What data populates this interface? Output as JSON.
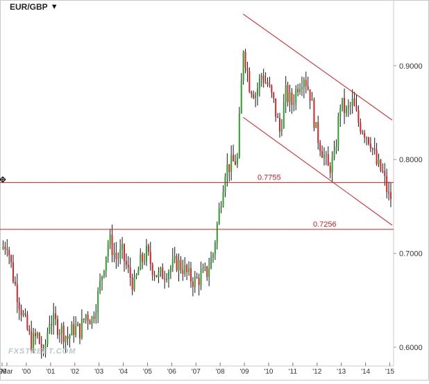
{
  "symbol": {
    "label": "EUR/GBP",
    "dropdown_icon": "triangle-down-icon",
    "dropdown_glyph": "▼"
  },
  "watermark": "FXSTREET.COM",
  "crosshair_icon": "move-crosshair-icon",
  "colors": {
    "up_candle": "#2ca02c",
    "down_candle": "#d62728",
    "wick": "#111111",
    "line": "#cc1f1f",
    "axis_text": "#333333",
    "border": "#c8c8c8"
  },
  "chart_data": {
    "type": "candlestick",
    "title": "EUR/GBP",
    "interval": "monthly",
    "y_range": [
      0.58,
      0.97
    ],
    "y_ticks": [
      "0.9000",
      "0.8000",
      "0.7000",
      "0.6000"
    ],
    "y_tick_values": [
      0.9,
      0.8,
      0.7,
      0.6
    ],
    "x_range_years": [
      1999.0,
      2015.1
    ],
    "x_tick_labels": [
      "'99",
      "Mar",
      "'00",
      "'01",
      "'02",
      "'03",
      "'04",
      "'05",
      "'06",
      "'07",
      "'08",
      "'09",
      "'10",
      "'11",
      "'12",
      "'13",
      "'14",
      "'15"
    ],
    "x_tick_values": [
      1999.0,
      1999.2,
      2000.0,
      2001.0,
      2002.0,
      2003.0,
      2004.0,
      2005.0,
      2006.0,
      2007.0,
      2008.0,
      2009.0,
      2010.0,
      2011.0,
      2012.0,
      2013.0,
      2014.0,
      2015.0
    ],
    "anchor_closes": [
      [
        1999.0,
        0.705
      ],
      [
        1999.25,
        0.712
      ],
      [
        1999.5,
        0.675
      ],
      [
        1999.75,
        0.648
      ],
      [
        2000.0,
        0.625
      ],
      [
        2000.25,
        0.605
      ],
      [
        2000.5,
        0.612
      ],
      [
        2000.75,
        0.59
      ],
      [
        2001.0,
        0.63
      ],
      [
        2001.25,
        0.625
      ],
      [
        2001.5,
        0.618
      ],
      [
        2001.75,
        0.61
      ],
      [
        2002.0,
        0.62
      ],
      [
        2002.25,
        0.618
      ],
      [
        2002.5,
        0.635
      ],
      [
        2002.75,
        0.63
      ],
      [
        2003.0,
        0.655
      ],
      [
        2003.25,
        0.69
      ],
      [
        2003.45,
        0.715
      ],
      [
        2003.75,
        0.695
      ],
      [
        2004.0,
        0.7
      ],
      [
        2004.25,
        0.68
      ],
      [
        2004.5,
        0.665
      ],
      [
        2004.75,
        0.69
      ],
      [
        2005.0,
        0.7
      ],
      [
        2005.25,
        0.685
      ],
      [
        2005.5,
        0.675
      ],
      [
        2005.75,
        0.68
      ],
      [
        2006.0,
        0.685
      ],
      [
        2006.25,
        0.69
      ],
      [
        2006.5,
        0.685
      ],
      [
        2006.75,
        0.675
      ],
      [
        2007.0,
        0.67
      ],
      [
        2007.25,
        0.675
      ],
      [
        2007.5,
        0.68
      ],
      [
        2007.75,
        0.7
      ],
      [
        2008.0,
        0.745
      ],
      [
        2008.25,
        0.79
      ],
      [
        2008.5,
        0.795
      ],
      [
        2008.75,
        0.8
      ],
      [
        2009.0,
        0.92
      ],
      [
        2009.25,
        0.88
      ],
      [
        2009.5,
        0.87
      ],
      [
        2009.75,
        0.89
      ],
      [
        2010.0,
        0.88
      ],
      [
        2010.25,
        0.86
      ],
      [
        2010.5,
        0.83
      ],
      [
        2010.75,
        0.87
      ],
      [
        2011.0,
        0.86
      ],
      [
        2011.25,
        0.88
      ],
      [
        2011.5,
        0.89
      ],
      [
        2011.75,
        0.87
      ],
      [
        2012.0,
        0.83
      ],
      [
        2012.25,
        0.81
      ],
      [
        2012.5,
        0.79
      ],
      [
        2012.75,
        0.8
      ],
      [
        2013.0,
        0.86
      ],
      [
        2013.25,
        0.85
      ],
      [
        2013.5,
        0.86
      ],
      [
        2013.75,
        0.84
      ],
      [
        2014.0,
        0.83
      ],
      [
        2014.25,
        0.82
      ],
      [
        2014.5,
        0.795
      ],
      [
        2014.75,
        0.785
      ],
      [
        2015.0,
        0.76
      ]
    ],
    "horizontal_lines": [
      {
        "name": "support-0.7755",
        "value": 0.7755,
        "label": "0.7755"
      },
      {
        "name": "support-0.7256",
        "value": 0.7256,
        "label": "0.7256"
      }
    ],
    "trend_channel": [
      {
        "name": "channel-upper",
        "from": [
          2008.95,
          0.955
        ],
        "to": [
          2015.1,
          0.842
        ]
      },
      {
        "name": "channel-lower",
        "from": [
          2008.95,
          0.845
        ],
        "to": [
          2015.1,
          0.73
        ]
      }
    ],
    "grid": false,
    "legend": "none"
  }
}
